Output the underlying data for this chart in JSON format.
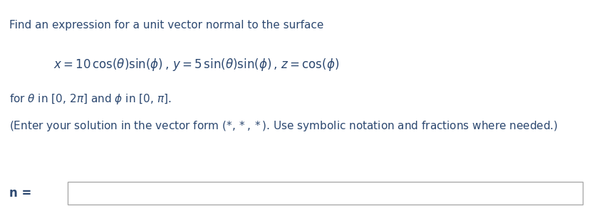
{
  "background_color": "#ffffff",
  "text_color": "#2c4870",
  "line1": "Find an expression for a unit vector normal to the surface",
  "line2_plain": "x = 10 cos (θ) sin (φ) , y = 5 sin (θ) sin (φ) , z = cos (φ)",
  "line3_plain": "for θ in [0, 2π] and φ in [0, π].",
  "line4_plain": "(Enter your solution in the vector form (*,*,*). Use symbolic notation and fractions where needed.)",
  "label_n": "n =",
  "fig_width": 8.31,
  "fig_height": 3.14,
  "dpi": 100,
  "fontsize_body": 11,
  "fontsize_eq": 12,
  "fontsize_label": 12
}
